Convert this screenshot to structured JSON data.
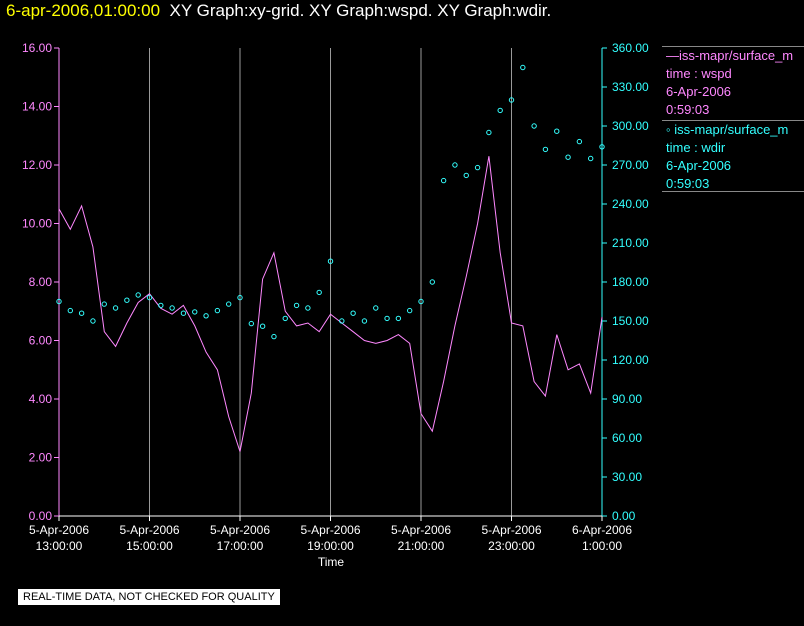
{
  "header": {
    "timestamp": "6-apr-2006,01:00:00",
    "titles": "XY Graph:xy-grid.  XY Graph:wspd.  XY Graph:wdir."
  },
  "legend": {
    "wspd": {
      "series": "—iss-mapr/surface_m",
      "field": "time : wspd",
      "date": "6-Apr-2006",
      "time": "0:59:03",
      "color": "#ff88ff"
    },
    "wdir": {
      "series": "◦ iss-mapr/surface_m",
      "field": "time : wdir",
      "date": "6-Apr-2006",
      "time": "0:59:03",
      "color": "#33ffff"
    }
  },
  "notice": "REAL-TIME DATA, NOT CHECKED FOR QUALITY",
  "chart_data": {
    "type": "line+scatter",
    "xlabel": "Time",
    "x_ticks": [
      {
        "date": "5-Apr-2006",
        "time": "13:00:00"
      },
      {
        "date": "5-Apr-2006",
        "time": "15:00:00"
      },
      {
        "date": "5-Apr-2006",
        "time": "17:00:00"
      },
      {
        "date": "5-Apr-2006",
        "time": "19:00:00"
      },
      {
        "date": "5-Apr-2006",
        "time": "21:00:00"
      },
      {
        "date": "5-Apr-2006",
        "time": "23:00:00"
      },
      {
        "date": "6-Apr-2006",
        "time": "1:00:00"
      }
    ],
    "x_hours_range": [
      0,
      12
    ],
    "y_left": {
      "label": "wspd",
      "range": [
        0,
        16
      ],
      "ticks": [
        "0.00",
        "2.00",
        "4.00",
        "6.00",
        "8.00",
        "10.00",
        "12.00",
        "14.00",
        "16.00"
      ],
      "color": "#ff88ff"
    },
    "y_right": {
      "label": "wdir",
      "range": [
        0,
        360
      ],
      "ticks": [
        "0.00",
        "30.00",
        "60.00",
        "90.00",
        "120.00",
        "150.00",
        "180.00",
        "210.00",
        "240.00",
        "270.00",
        "300.00",
        "330.00",
        "360.00"
      ],
      "color": "#33ffff"
    },
    "series": [
      {
        "name": "wspd",
        "kind": "line",
        "color": "#ff88ff",
        "x_hours": [
          0,
          0.25,
          0.5,
          0.75,
          1,
          1.25,
          1.5,
          1.75,
          2,
          2.25,
          2.5,
          2.75,
          3,
          3.25,
          3.5,
          3.75,
          4,
          4.25,
          4.5,
          4.75,
          5,
          5.25,
          5.5,
          5.75,
          6,
          6.25,
          6.5,
          6.75,
          7,
          7.25,
          7.5,
          7.75,
          8,
          8.25,
          8.5,
          8.75,
          9,
          9.25,
          9.5,
          9.75,
          10,
          10.25,
          10.5,
          10.75,
          11,
          11.25,
          11.5,
          11.75,
          12
        ],
        "values": [
          10.5,
          9.8,
          10.6,
          9.2,
          6.3,
          5.8,
          6.6,
          7.3,
          7.6,
          7.1,
          6.9,
          7.2,
          6.5,
          5.6,
          5.0,
          3.4,
          2.2,
          4.2,
          8.1,
          9.0,
          7.0,
          6.5,
          6.6,
          6.3,
          6.9,
          6.6,
          6.3,
          6.0,
          5.9,
          6.0,
          6.2,
          5.9,
          3.5,
          2.9,
          4.6,
          6.5,
          8.2,
          10.0,
          12.3,
          9.0,
          6.6,
          6.5,
          4.6,
          4.1,
          6.2,
          5.0,
          5.2,
          4.2,
          6.8
        ]
      },
      {
        "name": "wdir",
        "kind": "scatter",
        "color": "#33ffff",
        "x_hours": [
          0,
          0.25,
          0.5,
          0.75,
          1,
          1.25,
          1.5,
          1.75,
          2,
          2.25,
          2.5,
          2.75,
          3,
          3.25,
          3.5,
          3.75,
          4,
          4.25,
          4.5,
          4.75,
          5,
          5.25,
          5.5,
          5.75,
          6,
          6.25,
          6.5,
          6.75,
          7,
          7.25,
          7.5,
          7.75,
          8,
          8.25,
          8.5,
          8.75,
          9,
          9.25,
          9.5,
          9.75,
          10,
          10.25,
          10.5,
          10.75,
          11,
          11.25,
          11.5,
          11.75,
          12
        ],
        "values": [
          165,
          158,
          156,
          150,
          163,
          160,
          166,
          170,
          168,
          162,
          160,
          156,
          157,
          154,
          158,
          163,
          168,
          148,
          146,
          138,
          152,
          162,
          160,
          172,
          196,
          150,
          156,
          150,
          160,
          152,
          152,
          158,
          165,
          180,
          258,
          270,
          262,
          268,
          295,
          312,
          320,
          345,
          300,
          282,
          296,
          276,
          288,
          275,
          284
        ]
      }
    ]
  }
}
